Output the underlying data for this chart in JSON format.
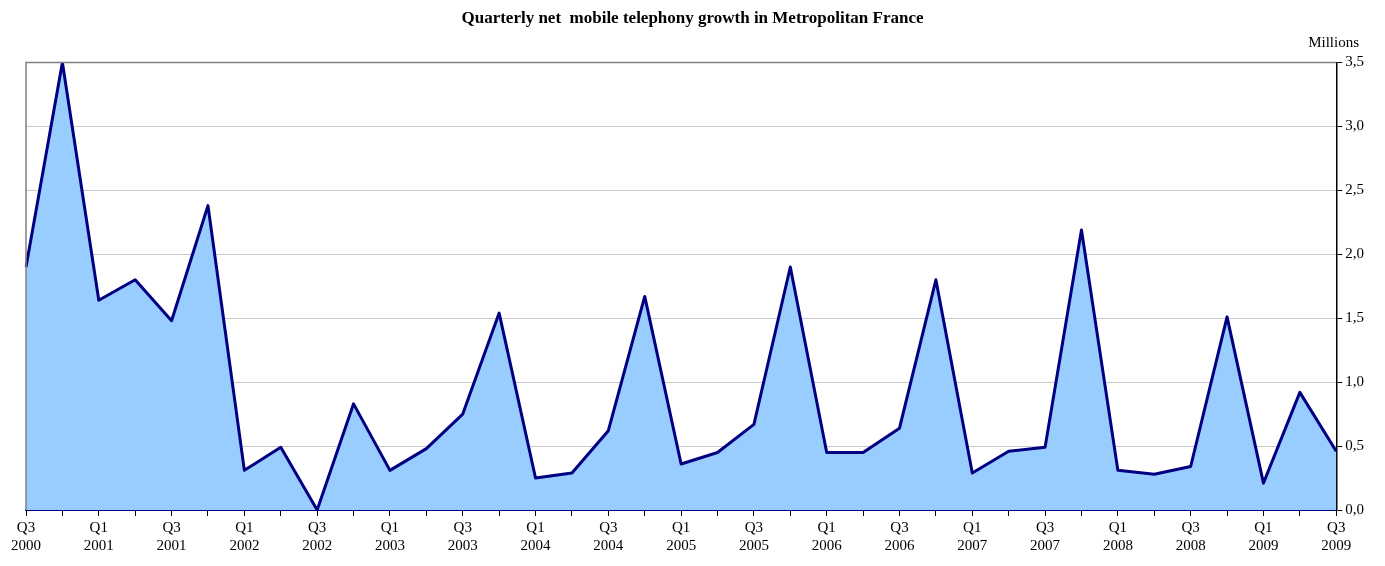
{
  "chart_data": {
    "type": "area",
    "title": "Quarterly net  mobile telephony growth in Metropolitan France",
    "ylabel": "Millions",
    "categories": [
      "Q3 2000",
      null,
      "Q1 2001",
      null,
      "Q3 2001",
      null,
      "Q1 2002",
      null,
      "Q3 2002",
      null,
      "Q1 2003",
      null,
      "Q3 2003",
      null,
      "Q1 2004",
      null,
      "Q3 2004",
      null,
      "Q1 2005",
      null,
      "Q3 2005",
      null,
      "Q1 2006",
      null,
      "Q3 2006",
      null,
      "Q1 2007",
      null,
      "Q3 2007",
      null,
      "Q1 2008",
      null,
      "Q3 2008",
      null,
      "Q1 2009",
      null,
      "Q3 2009"
    ],
    "series": [
      {
        "color": "#000080",
        "values": [
          1.9,
          3.5,
          1.64,
          1.8,
          1.48,
          2.38,
          0.31,
          0.49,
          0,
          0.83,
          0.31,
          0.48,
          0.75,
          1.54,
          0.25,
          0.29,
          0.62,
          1.67,
          0.36,
          0.45,
          0.67,
          1.9,
          0.45,
          0.45,
          0.64,
          1.8,
          0.29,
          0.46,
          0.49,
          2.19,
          0.31,
          0.28,
          0.34,
          1.51,
          0.21,
          0.92,
          0.46
        ]
      }
    ],
    "ylim": [
      0,
      3.5
    ],
    "yticks": [
      {
        "value": 0,
        "label": "0,0"
      },
      {
        "value": 0.5,
        "label": "0,5"
      },
      {
        "value": 1,
        "label": "1,0"
      },
      {
        "value": 1.5,
        "label": "1,5"
      },
      {
        "value": 2,
        "label": "2,0"
      },
      {
        "value": 2.5,
        "label": "2,5"
      },
      {
        "value": 3,
        "label": "3,0"
      },
      {
        "value": 3.5,
        "label": "3,5"
      }
    ],
    "grid": "y",
    "legend": false
  }
}
